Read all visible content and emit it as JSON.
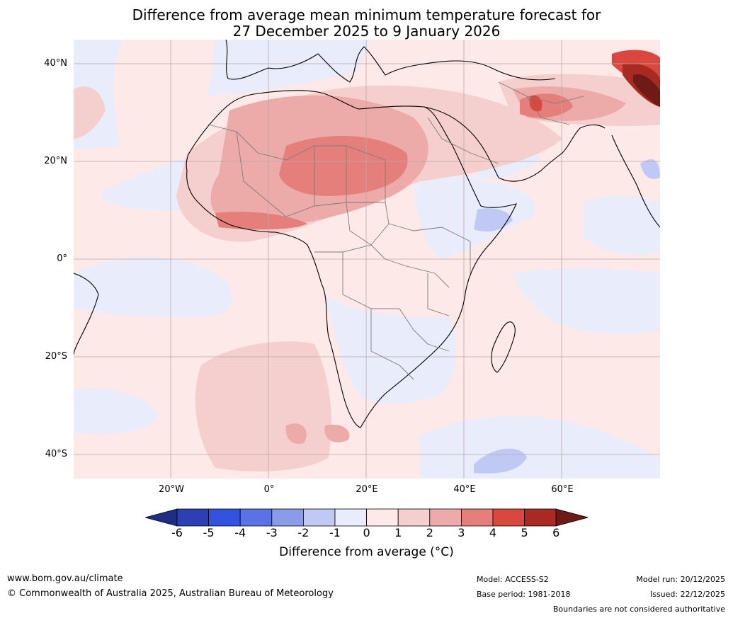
{
  "title": {
    "line1": "Difference from average mean minimum temperature forecast for",
    "line2": "27 December 2025 to 9 January 2026"
  },
  "map": {
    "lat_labels": [
      "40°N",
      "20°N",
      "0°",
      "20°S",
      "40°S"
    ],
    "lon_labels": [
      "20°W",
      "0°",
      "20°E",
      "40°E",
      "60°E"
    ]
  },
  "colorbar": {
    "ticks": [
      "-6",
      "-5",
      "-4",
      "-3",
      "-2",
      "-1",
      "0",
      "1",
      "2",
      "3",
      "4",
      "5",
      "6"
    ],
    "colors": [
      "#1f2e85",
      "#2c40b4",
      "#3352de",
      "#5a72e3",
      "#8a9be8",
      "#c0c9f3",
      "#e8ecfb",
      "#fce9e8",
      "#f4cfcd",
      "#ecaaa8",
      "#e57f7b",
      "#d9473f",
      "#a82a23",
      "#6e1a16"
    ],
    "label": "Difference from average (°C)"
  },
  "footer": {
    "website": "www.bom.gov.au/climate",
    "copyright": "© Commonwealth of Australia 2025, Australian Bureau of Meteorology",
    "model": "Model: ACCESS-S2",
    "base_period": "Base period: 1981-2018",
    "model_run": "Model run: 20/12/2025",
    "issued": "Issued: 22/12/2025",
    "disclaimer": "Boundaries are not considered authoritative"
  }
}
